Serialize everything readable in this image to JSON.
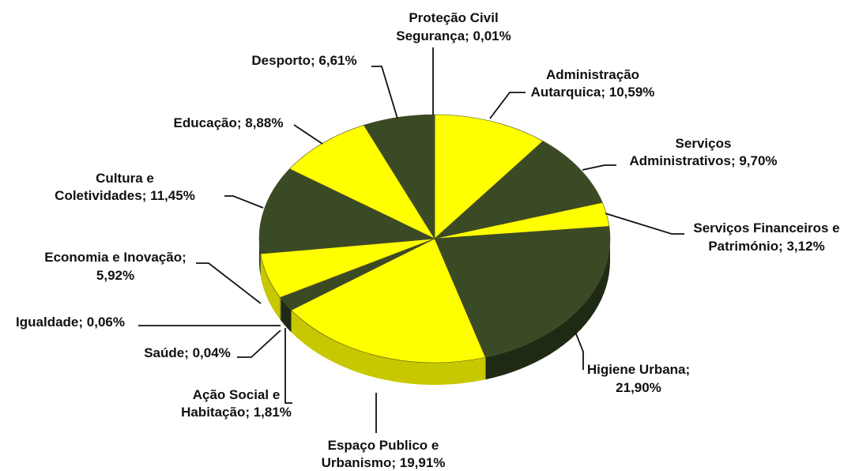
{
  "chart_data": {
    "type": "pie",
    "title": "",
    "colors": {
      "yellow": "#ffff00",
      "olive": "#3a4a25",
      "yellow_side": "#c8c800",
      "olive_side": "#1f2a14"
    },
    "slices": [
      {
        "label_lines": [
          "Proteção Civil",
          "Segurança; 0,01%"
        ],
        "value": 0.01,
        "color": "#3a4a25"
      },
      {
        "label_lines": [
          "Administração",
          "Autarquica; 10,59%"
        ],
        "value": 10.59,
        "color": "#ffff00"
      },
      {
        "label_lines": [
          "Serviços",
          "Administrativos; 9,70%"
        ],
        "value": 9.7,
        "color": "#3a4a25"
      },
      {
        "label_lines": [
          "Serviços Financeiros e",
          "Património; 3,12%"
        ],
        "value": 3.12,
        "color": "#ffff00"
      },
      {
        "label_lines": [
          "Higiene Urbana;",
          "21,90%"
        ],
        "value": 21.9,
        "color": "#3a4a25"
      },
      {
        "label_lines": [
          "Espaço Publico e",
          "Urbanismo; 19,91%"
        ],
        "value": 19.91,
        "color": "#ffff00"
      },
      {
        "label_lines": [
          "Ação Social e",
          "Habitação; 1,81%"
        ],
        "value": 1.81,
        "color": "#3a4a25"
      },
      {
        "label_lines": [
          "Saúde; 0,04%"
        ],
        "value": 0.04,
        "color": "#ffff00"
      },
      {
        "label_lines": [
          "Igualdade; 0,06%"
        ],
        "value": 0.06,
        "color": "#3a4a25"
      },
      {
        "label_lines": [
          "Economia e Inovação;",
          "5,92%"
        ],
        "value": 5.92,
        "color": "#ffff00"
      },
      {
        "label_lines": [
          "Cultura e",
          "Coletividades; 11,45%"
        ],
        "value": 11.45,
        "color": "#3a4a25"
      },
      {
        "label_lines": [
          "Educação; 8,88%"
        ],
        "value": 8.88,
        "color": "#ffff00"
      },
      {
        "label_lines": [
          "Desporto; 6,61%"
        ],
        "value": 6.61,
        "color": "#3a4a25"
      }
    ]
  }
}
